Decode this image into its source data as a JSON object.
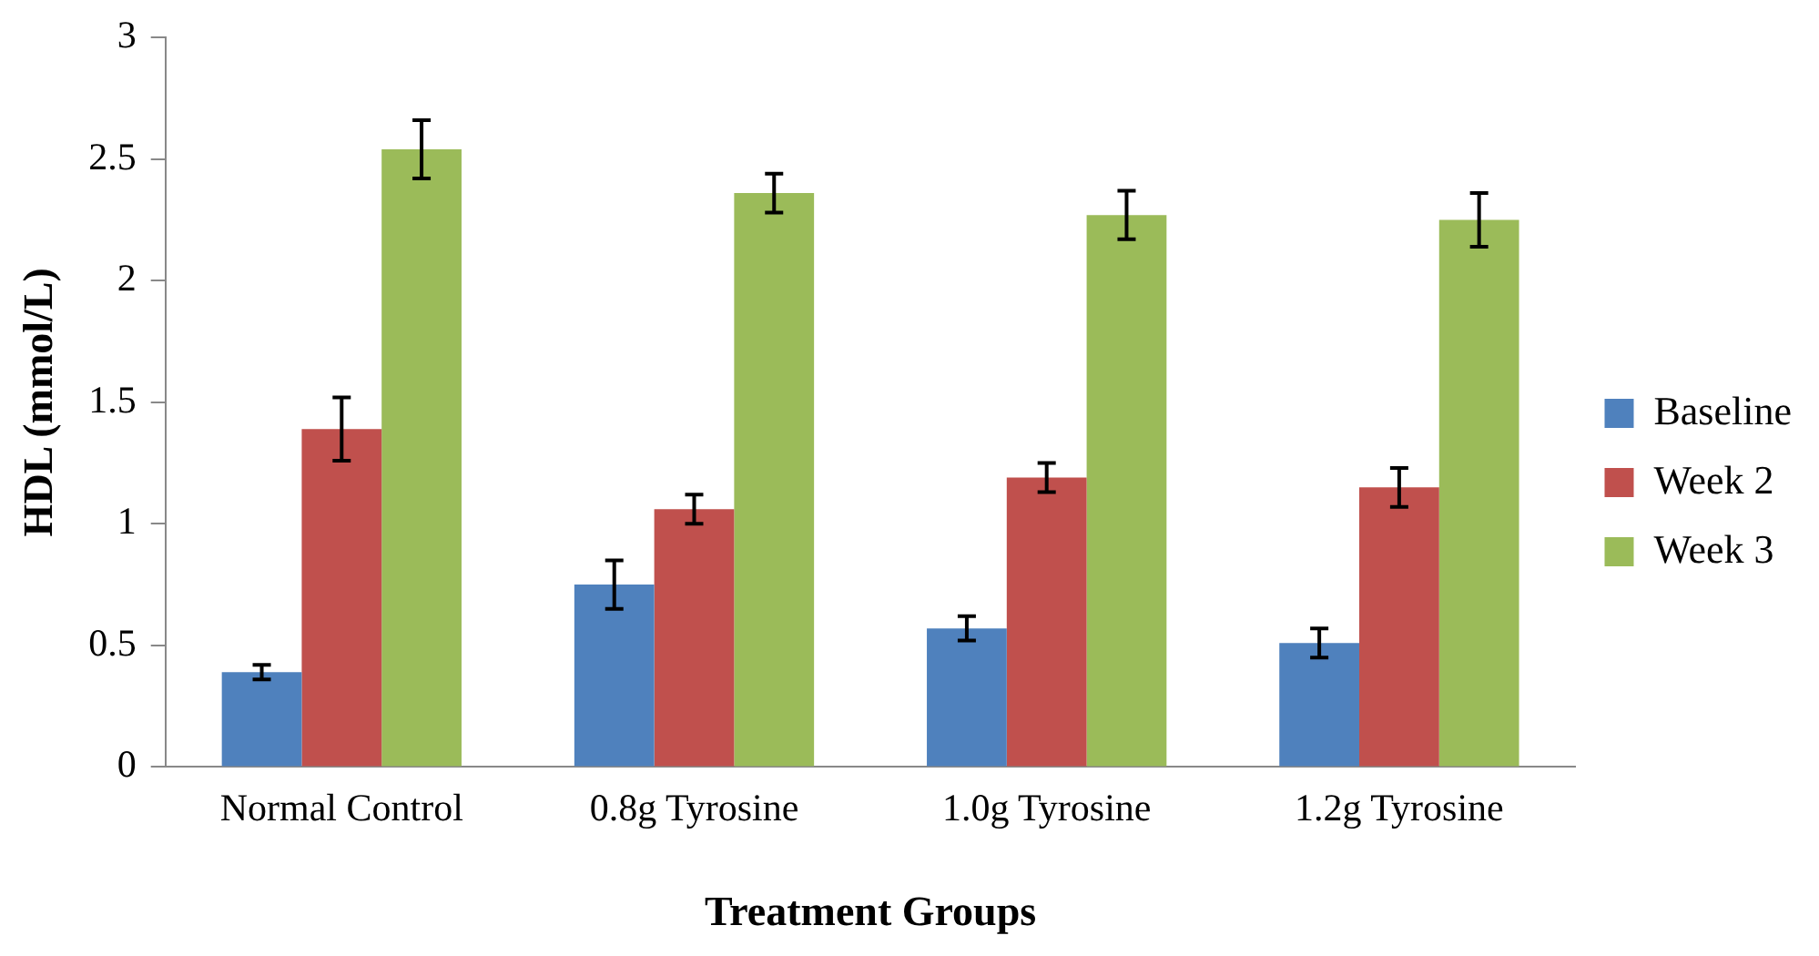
{
  "chart_data": {
    "type": "bar",
    "xlabel": "Treatment Groups",
    "ylabel": "HDL (mmol/L)",
    "categories": [
      "Normal Control",
      "0.8g Tyrosine",
      "1.0g Tyrosine",
      "1.2g Tyrosine"
    ],
    "series": [
      {
        "name": "Baseline",
        "color": "#4f81bd",
        "values": [
          0.39,
          0.75,
          0.57,
          0.51
        ],
        "errors": [
          0.03,
          0.1,
          0.05,
          0.06
        ]
      },
      {
        "name": "Week 2",
        "color": "#c0504d",
        "values": [
          1.39,
          1.06,
          1.19,
          1.15
        ],
        "errors": [
          0.13,
          0.06,
          0.06,
          0.08
        ]
      },
      {
        "name": "Week 3",
        "color": "#9bbb59",
        "values": [
          2.54,
          2.36,
          2.27,
          2.25
        ],
        "errors": [
          0.12,
          0.08,
          0.1,
          0.11
        ]
      }
    ],
    "ylim": [
      0,
      3
    ],
    "yticks": [
      0,
      0.5,
      1,
      1.5,
      2,
      2.5,
      3
    ],
    "grid": false,
    "legend": "right"
  }
}
